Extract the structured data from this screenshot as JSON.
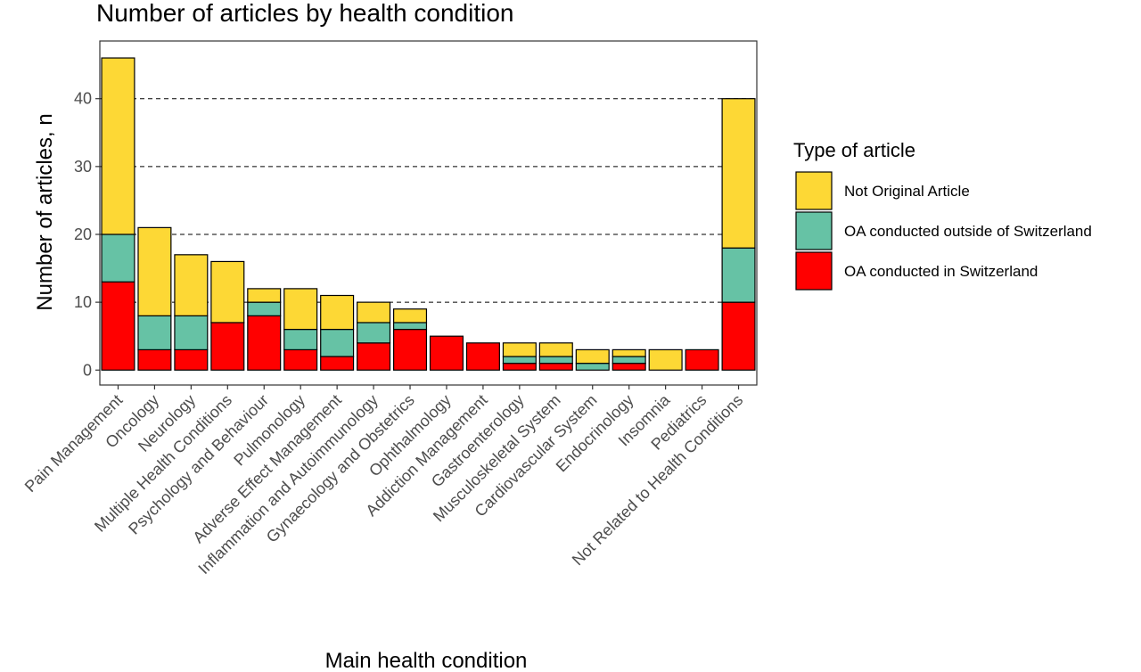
{
  "chart_data": {
    "type": "bar",
    "stacked": true,
    "title": "Number of articles by health condition",
    "xlabel": "Main health condition",
    "ylabel": "Number of articles, n",
    "ylim": [
      -2.2,
      48.5
    ],
    "yticks": [
      0,
      10,
      20,
      30,
      40
    ],
    "grid": "horizontal dashed at 10, 20, 30, 40",
    "categories": [
      "Pain Management",
      "Oncology",
      "Neurology",
      "Multiple Health Conditions",
      "Psychology and Behaviour",
      "Pulmonology",
      "Adverse Effect Management",
      "Inflammation and Autoimmunology",
      "Gynaecology and Obstetrics",
      "Ophthalmology",
      "Addiction Management",
      "Gastroenterology",
      "Musculoskeletal System",
      "Cardiovascular System",
      "Endocrinology",
      "Insomnia",
      "Pediatrics",
      "Not Related to Health Conditions"
    ],
    "series": [
      {
        "name": "OA conducted in Switzerland",
        "color": "#ff0000",
        "values": [
          13,
          3,
          3,
          7,
          8,
          3,
          2,
          4,
          6,
          5,
          4,
          1,
          1,
          0,
          1,
          0,
          3,
          10
        ]
      },
      {
        "name": "OA conducted outside of Switzerland",
        "color": "#66c2a5",
        "values": [
          7,
          5,
          5,
          0,
          2,
          3,
          4,
          3,
          1,
          0,
          0,
          1,
          1,
          1,
          1,
          0,
          0,
          8
        ]
      },
      {
        "name": "Not Original Article",
        "color": "#fdd835",
        "values": [
          26,
          13,
          9,
          9,
          2,
          6,
          5,
          3,
          2,
          0,
          0,
          2,
          2,
          2,
          1,
          3,
          0,
          22
        ]
      }
    ],
    "legend": {
      "title": "Type of article",
      "position": "right",
      "order": [
        "Not Original Article",
        "OA conducted outside of Switzerland",
        "OA conducted in Switzerland"
      ]
    }
  }
}
